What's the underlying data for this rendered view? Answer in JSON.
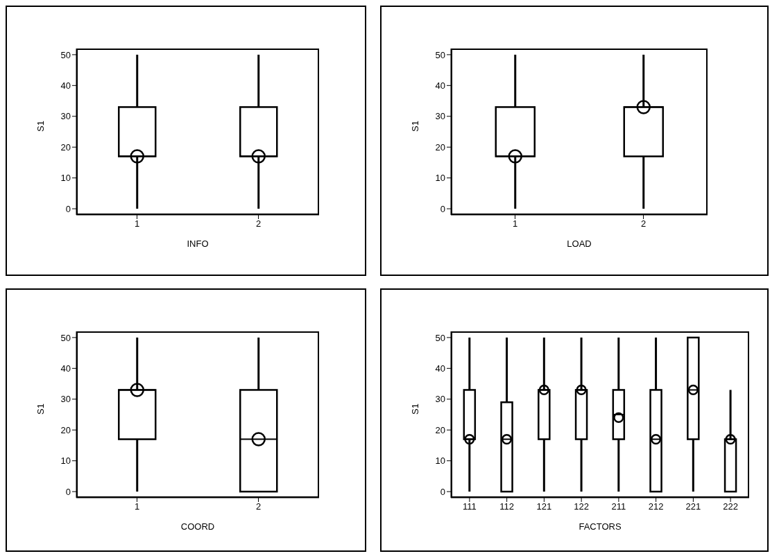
{
  "chart_data": [
    {
      "type": "box",
      "xlabel": "INFO",
      "ylabel": "S1",
      "categories": [
        "1",
        "2"
      ],
      "ylim": [
        -2,
        52
      ],
      "yticks": [
        0,
        10,
        20,
        30,
        40,
        50
      ],
      "grid": false,
      "marker": "circle",
      "boxes": [
        {
          "low": 0,
          "q1": 17,
          "median": 17,
          "q3": 33,
          "high": 50,
          "mean": 17
        },
        {
          "low": 0,
          "q1": 17,
          "median": 17,
          "q3": 33,
          "high": 50,
          "mean": 17
        }
      ]
    },
    {
      "type": "box",
      "xlabel": "LOAD",
      "ylabel": "S1",
      "categories": [
        "1",
        "2"
      ],
      "ylim": [
        -2,
        52
      ],
      "yticks": [
        0,
        10,
        20,
        30,
        40,
        50
      ],
      "grid": false,
      "marker": "circle",
      "boxes": [
        {
          "low": 0,
          "q1": 17,
          "median": 17,
          "q3": 33,
          "high": 50,
          "mean": 17
        },
        {
          "low": 0,
          "q1": 17,
          "median": 33,
          "q3": 33,
          "high": 50,
          "mean": 33
        }
      ]
    },
    {
      "type": "box",
      "xlabel": "COORD",
      "ylabel": "S1",
      "categories": [
        "1",
        "2"
      ],
      "ylim": [
        -2,
        52
      ],
      "yticks": [
        0,
        10,
        20,
        30,
        40,
        50
      ],
      "grid": false,
      "marker": "circle",
      "boxes": [
        {
          "low": 0,
          "q1": 17,
          "median": 33,
          "q3": 33,
          "high": 50,
          "mean": 33
        },
        {
          "low": 0,
          "q1": 0,
          "median": 17,
          "q3": 33,
          "high": 50,
          "mean": 17
        }
      ]
    },
    {
      "type": "box",
      "xlabel": "FACTORS",
      "ylabel": "S1",
      "categories": [
        "111",
        "112",
        "121",
        "122",
        "211",
        "212",
        "221",
        "222"
      ],
      "ylim": [
        -2,
        52
      ],
      "yticks": [
        0,
        10,
        20,
        30,
        40,
        50
      ],
      "grid": false,
      "marker": "circle",
      "boxes": [
        {
          "low": 0,
          "q1": 17,
          "median": 17,
          "q3": 33,
          "high": 50,
          "mean": 17
        },
        {
          "low": 0,
          "q1": 0,
          "median": 17,
          "q3": 29,
          "high": 50,
          "mean": 17
        },
        {
          "low": 0,
          "q1": 17,
          "median": 33,
          "q3": 33,
          "high": 50,
          "mean": 33
        },
        {
          "low": 0,
          "q1": 17,
          "median": 33,
          "q3": 33,
          "high": 50,
          "mean": 33
        },
        {
          "low": 0,
          "q1": 17,
          "median": 25,
          "q3": 33,
          "high": 50,
          "mean": 24
        },
        {
          "low": 0,
          "q1": 0,
          "median": 17,
          "q3": 33,
          "high": 50,
          "mean": 17
        },
        {
          "low": 0,
          "q1": 17,
          "median": 33,
          "q3": 50,
          "high": 50,
          "mean": 33
        },
        {
          "low": 0,
          "q1": 0,
          "median": 17,
          "q3": 17,
          "high": 33,
          "mean": 17
        }
      ]
    }
  ]
}
